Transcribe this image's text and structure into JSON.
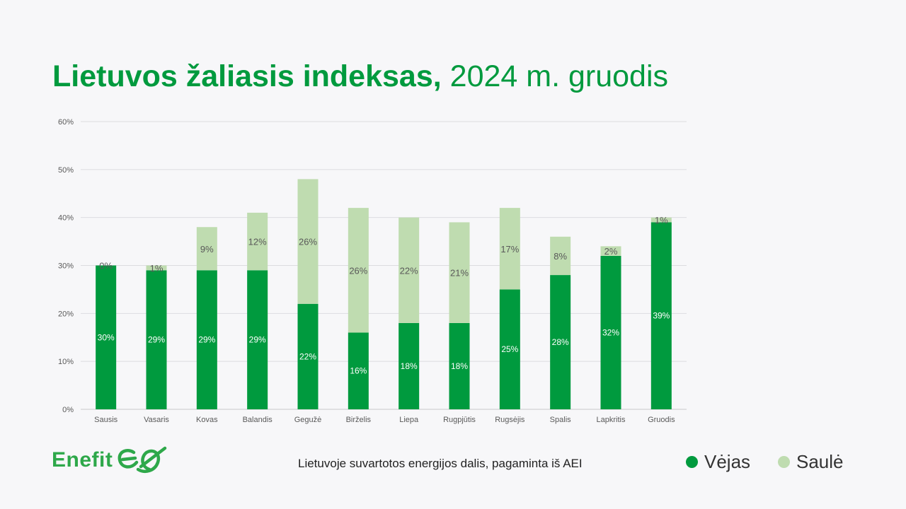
{
  "title": {
    "bold": "Lietuvos žaliasis indeksas,",
    "regular": " 2024 m. gruodis"
  },
  "footer_note": "Lietuvoje suvartotos energijos dalis, pagaminta iš AEI",
  "brand": {
    "name": "Enefit",
    "color": "#2ea84a"
  },
  "legend": [
    {
      "label": "Vėjas",
      "color": "#009a3e"
    },
    {
      "label": "Saulė",
      "color": "#bfdcb0"
    }
  ],
  "chart_data": {
    "type": "bar",
    "stacked": true,
    "categories": [
      "Sausis",
      "Vasaris",
      "Kovas",
      "Balandis",
      "Gegužė",
      "Birželis",
      "Liepa",
      "Rugpjūtis",
      "Rugsėjis",
      "Spalis",
      "Lapkritis",
      "Gruodis"
    ],
    "series": [
      {
        "name": "Vėjas",
        "color": "#009a3e",
        "values": [
          30,
          29,
          29,
          29,
          22,
          16,
          18,
          18,
          25,
          28,
          32,
          39
        ],
        "labels": [
          "30%",
          "29%",
          "29%",
          "29%",
          "22%",
          "16%",
          "18%",
          "18%",
          "25%",
          "28%",
          "32%",
          "39%"
        ]
      },
      {
        "name": "Saulė",
        "color": "#bfdcb0",
        "values": [
          0,
          1,
          9,
          12,
          26,
          26,
          22,
          21,
          17,
          8,
          2,
          1
        ],
        "labels": [
          "0%",
          "1%",
          "9%",
          "12%",
          "26%",
          "26%",
          "22%",
          "21%",
          "17%",
          "8%",
          "2%",
          "1%"
        ]
      }
    ],
    "ylim": [
      0,
      60
    ],
    "yticks": [
      0,
      10,
      20,
      30,
      40,
      50,
      60
    ],
    "ytick_labels": [
      "0%",
      "10%",
      "20%",
      "30%",
      "40%",
      "50%",
      "60%"
    ],
    "grid": true
  }
}
